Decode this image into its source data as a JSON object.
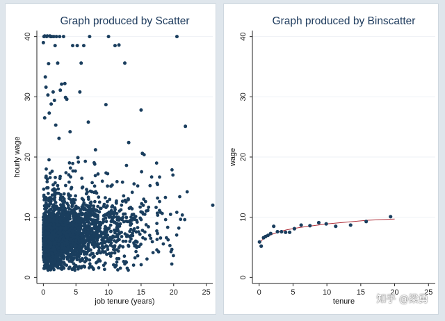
{
  "chart_data": [
    {
      "type": "scatter",
      "title": "Graph produced by Scatter",
      "xlabel": "job tenure (years)",
      "ylabel": "hourly wage",
      "xlim": [
        -1,
        26
      ],
      "ylim": [
        -1,
        41
      ],
      "xticks": [
        "0",
        "5",
        "10",
        "15",
        "20",
        "25"
      ],
      "yticks": [
        "0",
        "10",
        "20",
        "30",
        "40"
      ],
      "marker_color": "#1a3e5e",
      "notes": "dense cloud of individual points; tenure 0-26 yrs, wages 0-40 ($40 cap)",
      "highlight_points": {
        "x": [
          0,
          0.1,
          0.2,
          0.3,
          0.5,
          0.6,
          0.8,
          1,
          1.1,
          1.3,
          1.5,
          1.6,
          1.8,
          2,
          2.2,
          2.5,
          2.8,
          3.1,
          4.5,
          5.2,
          5.8,
          6.2,
          7.1,
          10,
          11,
          11.6,
          12.5,
          15,
          20.5,
          0.4,
          0.7,
          1.2,
          1.9,
          2.4,
          3.3,
          3.6,
          4.1,
          5.6,
          6.9,
          9.6,
          13.1,
          15.2,
          21.8,
          0.2,
          0.9,
          1.7,
          2.6,
          3.4,
          5.3,
          8,
          26
        ],
        "y": [
          39,
          40,
          40.1,
          33.3,
          40,
          40.1,
          35.5,
          40.1,
          40,
          40,
          30.8,
          40,
          38.5,
          40,
          35.6,
          40,
          32.1,
          40,
          38.5,
          38.5,
          35.6,
          38.5,
          40,
          40,
          38.5,
          38.6,
          35.6,
          27.8,
          40,
          31.6,
          30.3,
          28.8,
          25.3,
          23.1,
          32.2,
          29.6,
          24.2,
          30.8,
          25.8,
          28.7,
          22.4,
          20.6,
          25.1,
          26.5,
          27.3,
          29.4,
          31.1,
          29.9,
          19.9,
          21.2,
          12
        ]
      }
    },
    {
      "type": "scatter",
      "title": "Graph produced by Binscatter",
      "xlabel": "tenure",
      "ylabel": "wage",
      "xlim": [
        -1,
        26
      ],
      "ylim": [
        -1,
        41
      ],
      "xticks": [
        "0",
        "5",
        "10",
        "15",
        "20",
        "25"
      ],
      "yticks": [
        "0",
        "10",
        "20",
        "30",
        "40"
      ],
      "marker_color": "#1a3e5e",
      "fit_color": "#b0303a",
      "series": [
        {
          "x": [
            0.05,
            0.3,
            0.65,
            0.95,
            1.3,
            1.7,
            2.15,
            2.7,
            3.3,
            3.9,
            4.5,
            5.2,
            6.2,
            7.5,
            8.8,
            9.9,
            11.3,
            13.5,
            15.8,
            19.4
          ],
          "y": [
            5.9,
            5.2,
            6.6,
            6.8,
            7.0,
            7.3,
            8.5,
            7.6,
            7.6,
            7.5,
            7.5,
            8.1,
            8.7,
            8.6,
            9.1,
            8.9,
            8.5,
            8.7,
            9.3,
            10.1
          ]
        }
      ],
      "fit_line": {
        "x": [
          0,
          0.5,
          1,
          2,
          3,
          4,
          5,
          6,
          8,
          10,
          12,
          14,
          16,
          18,
          20
        ],
        "y": [
          5.6,
          6.3,
          6.7,
          7.2,
          7.6,
          7.9,
          8.1,
          8.3,
          8.6,
          8.9,
          9.1,
          9.3,
          9.5,
          9.6,
          9.7
        ]
      }
    }
  ],
  "watermark": "知乎 @梁勇"
}
